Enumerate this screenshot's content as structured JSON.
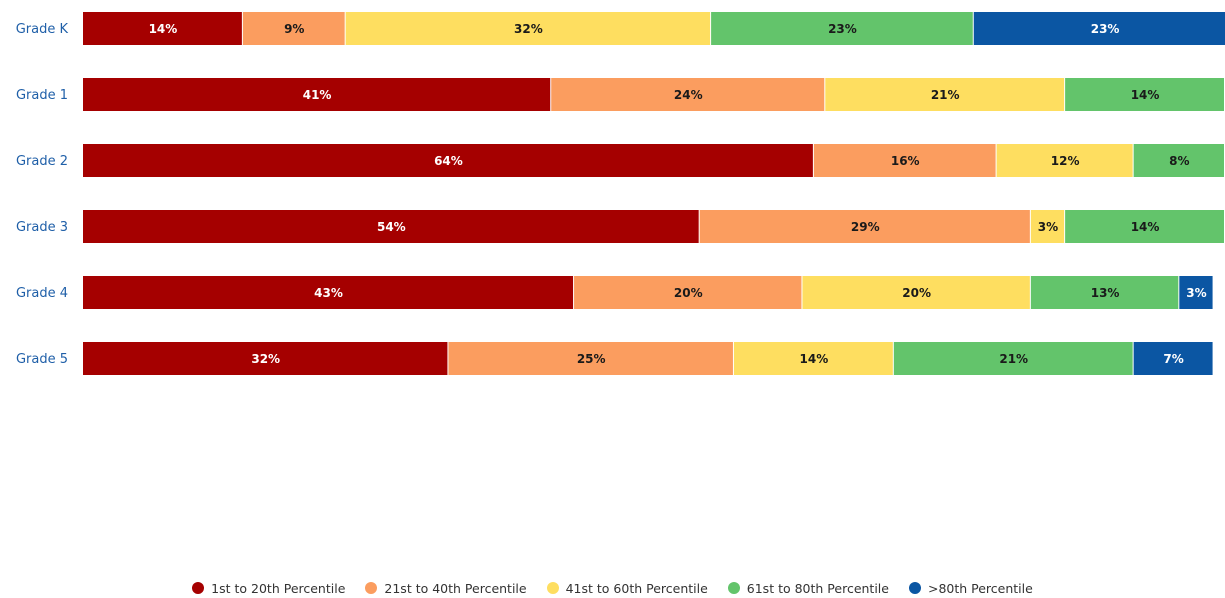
{
  "chart_data": {
    "type": "bar",
    "orientation": "horizontal",
    "stacked": true,
    "percent": true,
    "categories": [
      "Grade K",
      "Grade 1",
      "Grade 2",
      "Grade 3",
      "Grade 4",
      "Grade 5"
    ],
    "series": [
      {
        "name": "1st to 20th Percentile",
        "color": "#a50000",
        "label_color": "#ffffff",
        "values": [
          14,
          41,
          64,
          54,
          43,
          32
        ]
      },
      {
        "name": "21st to 40th Percentile",
        "color": "#fb9d5f",
        "label_color": "#1a1a1a",
        "values": [
          9,
          24,
          16,
          29,
          20,
          25
        ]
      },
      {
        "name": "41st to 60th Percentile",
        "color": "#fede60",
        "label_color": "#1a1a1a",
        "values": [
          32,
          21,
          12,
          3,
          20,
          14
        ]
      },
      {
        "name": "61st to 80th Percentile",
        "color": "#63c46b",
        "label_color": "#1a1a1a",
        "values": [
          23,
          14,
          8,
          14,
          13,
          21
        ]
      },
      {
        "name": ">80th Percentile",
        "color": "#0b56a3",
        "label_color": "#ffffff",
        "values": [
          23,
          0,
          0,
          0,
          3,
          7
        ]
      }
    ],
    "data_labels": [
      [
        "14%",
        "9%",
        "32%",
        "23%",
        "23%"
      ],
      [
        "41%",
        "24%",
        "21%",
        "14%",
        ""
      ],
      [
        "64%",
        "16%",
        "12%",
        "8%",
        ""
      ],
      [
        "54%",
        "29%",
        "3%",
        "14%",
        ""
      ],
      [
        "43%",
        "20%",
        "20%",
        "13%",
        "3%"
      ],
      [
        "32%",
        "25%",
        "14%",
        "21%",
        "7%"
      ]
    ],
    "xlim": [
      0,
      100
    ],
    "grid": false,
    "legend_position": "bottom-center"
  },
  "legend": {
    "items": [
      {
        "label": "1st to 20th Percentile",
        "color": "#a50000"
      },
      {
        "label": "21st to 40th Percentile",
        "color": "#fb9d5f"
      },
      {
        "label": "41st to 60th Percentile",
        "color": "#fede60"
      },
      {
        "label": "61st to 80th Percentile",
        "color": "#63c46b"
      },
      {
        "label": ">80th Percentile",
        "color": "#0b56a3"
      }
    ]
  }
}
